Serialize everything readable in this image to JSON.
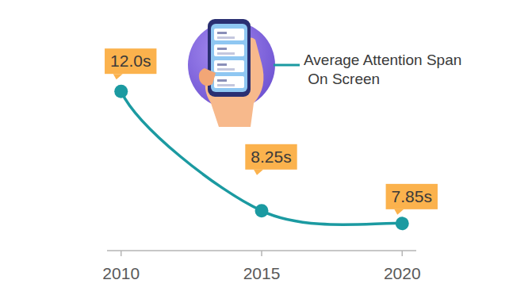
{
  "chart_data": {
    "type": "line",
    "x": [
      2010,
      2015,
      2020
    ],
    "xlim": [
      2009.5,
      2020.5
    ],
    "xticks": [
      2010,
      2015,
      2020
    ],
    "ylim": [
      7,
      13
    ],
    "series": [
      {
        "name": "Average Attention Span On Screen",
        "color": "#1b9aa1",
        "values": [
          12.0,
          8.25,
          7.85
        ],
        "value_labels": [
          "12.0s",
          "8.25s",
          "7.85s"
        ],
        "marker": "circle",
        "line_style": "solid"
      }
    ],
    "data_labels": true,
    "tick_labels": "x",
    "grid": false
  }
}
